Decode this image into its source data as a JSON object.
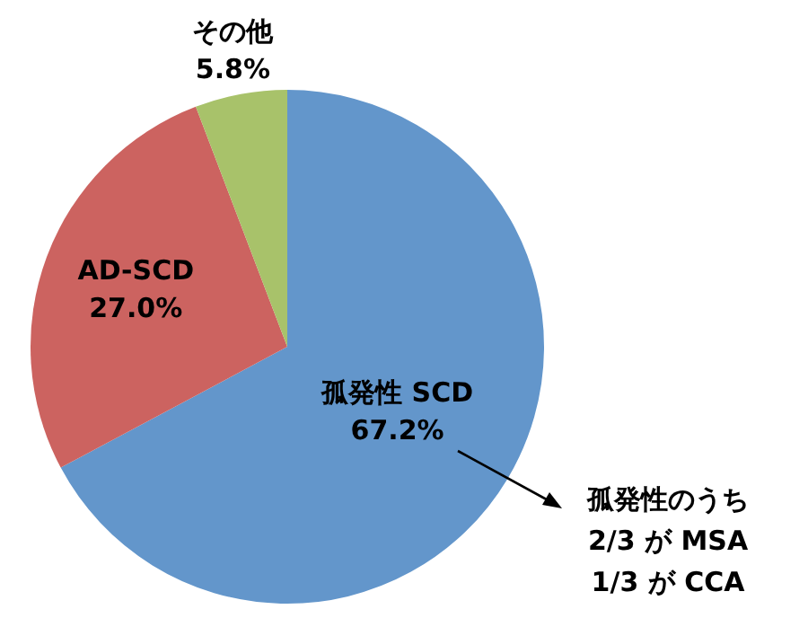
{
  "chart_data": {
    "type": "pie",
    "categories": [
      "孤発性 SCD",
      "AD-SCD",
      "その他"
    ],
    "values": [
      67.2,
      27.0,
      5.8
    ],
    "colors": [
      "#6396cb",
      "#cc6360",
      "#a8c26a"
    ],
    "value_labels": [
      "67.2%",
      "27.0%",
      "5.8%"
    ],
    "legend": false,
    "annotations": [
      "孤発性のうち\n2/3 が MSA\n1/3 が CCA"
    ]
  }
}
